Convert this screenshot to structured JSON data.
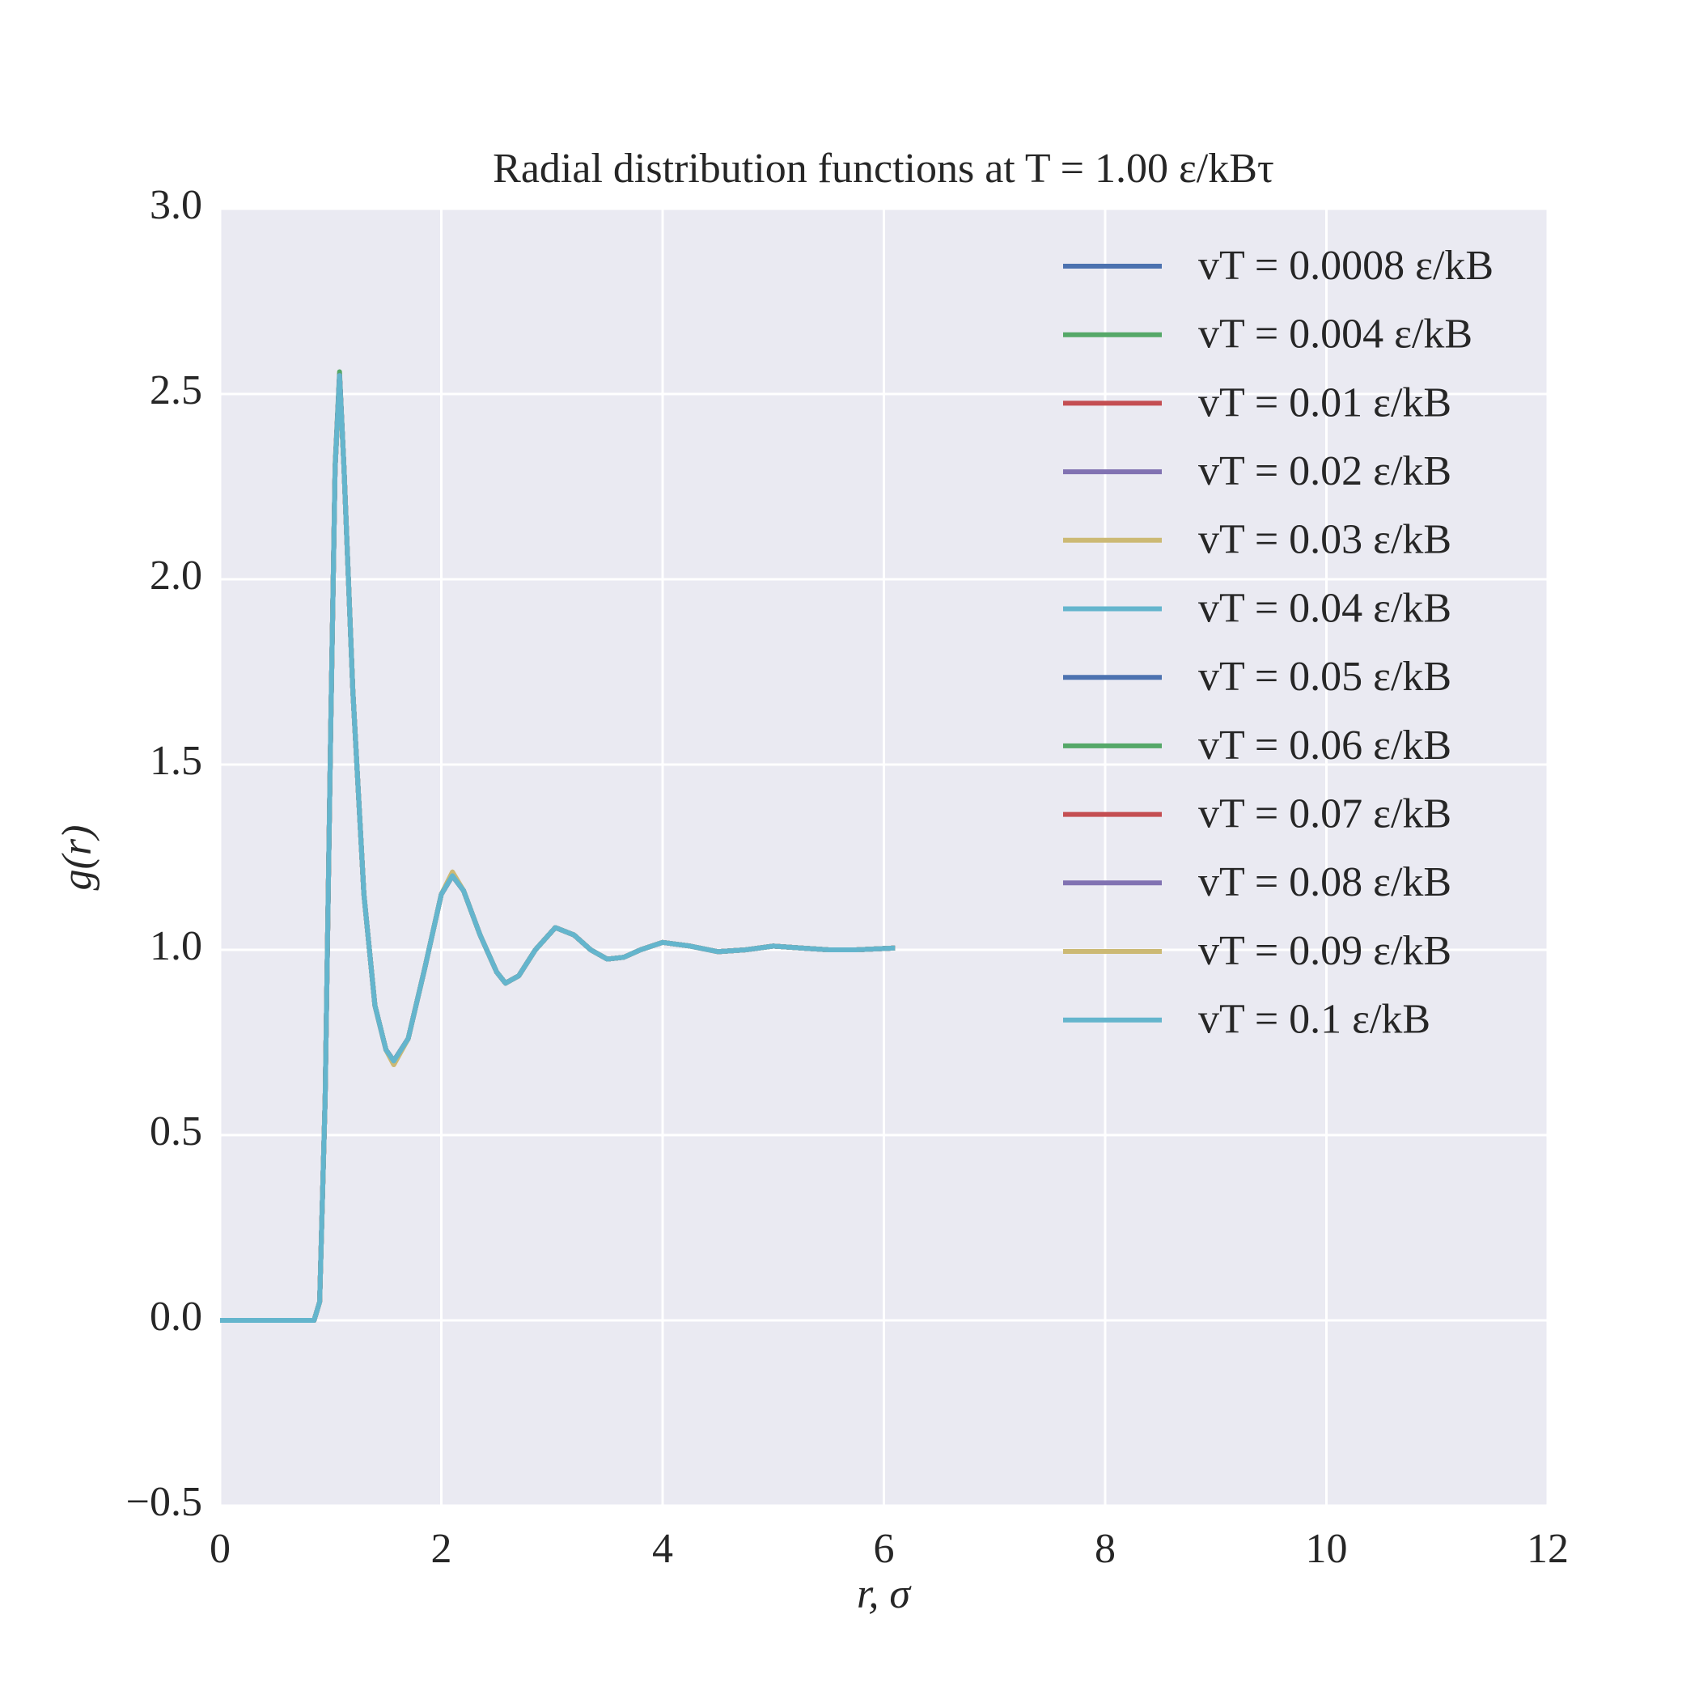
{
  "chart_data": {
    "type": "line",
    "title": "Radial distribution functions at T = 1.00 ε/kBτ",
    "xlabel": "r, σ",
    "ylabel": "g(r)",
    "xlim": [
      0,
      12
    ],
    "xticks": [
      0,
      2,
      4,
      6,
      8,
      10,
      12
    ],
    "ylim": [
      -0.5,
      3
    ],
    "yticks": [
      {
        "value": -0.5,
        "label": "−0.5"
      },
      {
        "value": 0,
        "label": "0.0"
      },
      0.5,
      {
        "value": 1,
        "label": "1.0"
      },
      1.5,
      {
        "value": 2,
        "label": "2.0"
      },
      2.5,
      {
        "value": 3,
        "label": "3.0"
      }
    ],
    "grid": true,
    "legend": "upper right",
    "x": [
      0,
      0.5,
      0.85,
      0.9,
      0.95,
      1.0,
      1.04,
      1.08,
      1.12,
      1.2,
      1.3,
      1.4,
      1.5,
      1.57,
      1.7,
      1.85,
      2.0,
      2.1,
      2.2,
      2.35,
      2.5,
      2.58,
      2.7,
      2.85,
      3.03,
      3.2,
      3.35,
      3.5,
      3.65,
      3.8,
      4.0,
      4.25,
      4.5,
      4.75,
      5.0,
      5.25,
      5.5,
      5.75,
      6.1
    ],
    "series": [
      {
        "name": "vT = 0.0008 ε/kB",
        "color": "#4c72b0",
        "values": [
          0,
          0,
          0,
          0.05,
          0.6,
          1.6,
          2.3,
          2.55,
          2.3,
          1.7,
          1.15,
          0.85,
          0.73,
          0.7,
          0.76,
          0.95,
          1.15,
          1.2,
          1.16,
          1.04,
          0.94,
          0.91,
          0.93,
          1.0,
          1.06,
          1.04,
          1.0,
          0.975,
          0.98,
          1.0,
          1.02,
          1.01,
          0.995,
          1.0,
          1.01,
          1.005,
          1.0,
          1.0,
          1.005
        ]
      },
      {
        "name": "vT = 0.004 ε/kB",
        "color": "#55a868",
        "values": [
          0,
          0,
          0,
          0.05,
          0.6,
          1.6,
          2.31,
          2.56,
          2.3,
          1.7,
          1.15,
          0.85,
          0.73,
          0.7,
          0.76,
          0.95,
          1.15,
          1.2,
          1.16,
          1.04,
          0.94,
          0.91,
          0.93,
          1.0,
          1.06,
          1.04,
          1.0,
          0.975,
          0.98,
          1.0,
          1.02,
          1.01,
          0.995,
          1.0,
          1.01,
          1.005,
          1.0,
          1.0,
          1.005
        ]
      },
      {
        "name": "vT = 0.01 ε/kB",
        "color": "#c44e52",
        "values": [
          0,
          0,
          0,
          0.05,
          0.6,
          1.6,
          2.3,
          2.55,
          2.3,
          1.7,
          1.15,
          0.85,
          0.73,
          0.7,
          0.76,
          0.95,
          1.15,
          1.2,
          1.16,
          1.04,
          0.94,
          0.91,
          0.93,
          1.0,
          1.06,
          1.04,
          1.0,
          0.975,
          0.98,
          1.0,
          1.02,
          1.01,
          0.995,
          1.0,
          1.01,
          1.005,
          1.0,
          1.0,
          1.005
        ]
      },
      {
        "name": "vT = 0.02 ε/kB",
        "color": "#8172b2",
        "values": [
          0,
          0,
          0,
          0.05,
          0.6,
          1.6,
          2.3,
          2.55,
          2.3,
          1.7,
          1.15,
          0.85,
          0.73,
          0.7,
          0.76,
          0.95,
          1.15,
          1.2,
          1.16,
          1.04,
          0.94,
          0.91,
          0.93,
          1.0,
          1.06,
          1.04,
          1.0,
          0.975,
          0.98,
          1.0,
          1.02,
          1.01,
          0.995,
          1.0,
          1.01,
          1.005,
          1.0,
          1.0,
          1.005
        ]
      },
      {
        "name": "vT = 0.03 ε/kB",
        "color": "#ccb974",
        "values": [
          0,
          0,
          0,
          0.05,
          0.6,
          1.6,
          2.3,
          2.54,
          2.3,
          1.7,
          1.15,
          0.85,
          0.73,
          0.69,
          0.76,
          0.95,
          1.15,
          1.21,
          1.16,
          1.04,
          0.94,
          0.91,
          0.93,
          1.0,
          1.06,
          1.04,
          1.0,
          0.975,
          0.98,
          1.0,
          1.02,
          1.01,
          0.995,
          1.0,
          1.01,
          1.005,
          1.0,
          1.0,
          1.005
        ]
      },
      {
        "name": "vT = 0.04 ε/kB",
        "color": "#64b5cd",
        "values": [
          0,
          0,
          0,
          0.05,
          0.6,
          1.6,
          2.3,
          2.55,
          2.3,
          1.7,
          1.15,
          0.85,
          0.73,
          0.7,
          0.76,
          0.95,
          1.15,
          1.2,
          1.16,
          1.04,
          0.94,
          0.91,
          0.93,
          1.0,
          1.06,
          1.04,
          1.0,
          0.975,
          0.98,
          1.0,
          1.02,
          1.01,
          0.995,
          1.0,
          1.01,
          1.005,
          1.0,
          1.0,
          1.005
        ]
      },
      {
        "name": "vT = 0.05 ε/kB",
        "color": "#4c72b0",
        "values": [
          0,
          0,
          0,
          0.05,
          0.6,
          1.6,
          2.3,
          2.55,
          2.3,
          1.7,
          1.15,
          0.85,
          0.73,
          0.7,
          0.76,
          0.95,
          1.15,
          1.2,
          1.16,
          1.04,
          0.94,
          0.91,
          0.93,
          1.0,
          1.06,
          1.04,
          1.0,
          0.975,
          0.98,
          1.0,
          1.02,
          1.01,
          0.995,
          1.0,
          1.01,
          1.005,
          1.0,
          1.0,
          1.005
        ]
      },
      {
        "name": "vT = 0.06 ε/kB",
        "color": "#55a868",
        "values": [
          0,
          0,
          0,
          0.05,
          0.6,
          1.6,
          2.3,
          2.55,
          2.3,
          1.7,
          1.15,
          0.85,
          0.73,
          0.7,
          0.76,
          0.95,
          1.15,
          1.2,
          1.16,
          1.04,
          0.94,
          0.91,
          0.93,
          1.0,
          1.06,
          1.04,
          1.0,
          0.975,
          0.98,
          1.0,
          1.02,
          1.01,
          0.995,
          1.0,
          1.01,
          1.005,
          1.0,
          1.0,
          1.005
        ]
      },
      {
        "name": "vT = 0.07 ε/kB",
        "color": "#c44e52",
        "values": [
          0,
          0,
          0,
          0.05,
          0.6,
          1.6,
          2.3,
          2.55,
          2.3,
          1.7,
          1.15,
          0.85,
          0.73,
          0.7,
          0.76,
          0.95,
          1.15,
          1.2,
          1.16,
          1.04,
          0.94,
          0.91,
          0.93,
          1.0,
          1.06,
          1.04,
          1.0,
          0.975,
          0.98,
          1.0,
          1.02,
          1.01,
          0.995,
          1.0,
          1.01,
          1.005,
          1.0,
          1.0,
          1.005
        ]
      },
      {
        "name": "vT = 0.08 ε/kB",
        "color": "#8172b2",
        "values": [
          0,
          0,
          0,
          0.05,
          0.6,
          1.6,
          2.3,
          2.55,
          2.3,
          1.7,
          1.15,
          0.85,
          0.73,
          0.7,
          0.76,
          0.95,
          1.15,
          1.2,
          1.16,
          1.04,
          0.94,
          0.91,
          0.93,
          1.0,
          1.06,
          1.04,
          1.0,
          0.975,
          0.98,
          1.0,
          1.02,
          1.01,
          0.995,
          1.0,
          1.01,
          1.005,
          1.0,
          1.0,
          1.005
        ]
      },
      {
        "name": "vT = 0.09 ε/kB",
        "color": "#ccb974",
        "values": [
          0,
          0,
          0,
          0.05,
          0.6,
          1.6,
          2.3,
          2.54,
          2.3,
          1.7,
          1.15,
          0.85,
          0.73,
          0.69,
          0.76,
          0.95,
          1.15,
          1.21,
          1.16,
          1.04,
          0.94,
          0.91,
          0.93,
          1.0,
          1.06,
          1.04,
          1.0,
          0.975,
          0.98,
          1.0,
          1.02,
          1.01,
          0.995,
          1.0,
          1.01,
          1.005,
          1.0,
          1.0,
          1.005
        ]
      },
      {
        "name": "vT = 0.1 ε/kB",
        "color": "#64b5cd",
        "values": [
          0,
          0,
          0,
          0.05,
          0.6,
          1.6,
          2.3,
          2.55,
          2.3,
          1.7,
          1.15,
          0.85,
          0.73,
          0.7,
          0.76,
          0.95,
          1.15,
          1.2,
          1.16,
          1.04,
          0.94,
          0.91,
          0.93,
          1.0,
          1.06,
          1.04,
          1.0,
          0.975,
          0.98,
          1.0,
          1.02,
          1.01,
          0.995,
          1.0,
          1.01,
          1.005,
          1.0,
          1.0,
          1.005
        ]
      }
    ]
  }
}
